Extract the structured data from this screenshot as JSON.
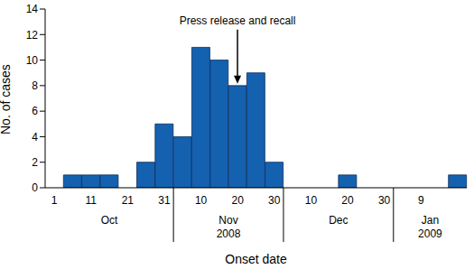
{
  "chart_data": {
    "type": "bar",
    "categories": [
      "1",
      null,
      "11",
      null,
      "21",
      null,
      "31",
      null,
      "10",
      null,
      "20",
      null,
      "30",
      null,
      "10",
      null,
      "20",
      null,
      "30",
      null,
      "9",
      null,
      null
    ],
    "values": [
      0,
      1,
      1,
      1,
      0,
      2,
      5,
      4,
      11,
      10,
      8,
      9,
      2,
      0,
      0,
      0,
      1,
      0,
      0,
      0,
      0,
      0,
      1
    ],
    "color": "#1461b0",
    "ylim": [
      0,
      14
    ],
    "yticks": [
      0,
      2,
      4,
      6,
      8,
      10,
      12,
      14
    ],
    "xlabel": "Onset date",
    "ylabel": "No. of cases",
    "x_groups": [
      {
        "label": "Oct",
        "from": 0,
        "to": 6
      },
      {
        "label": "Nov",
        "sublabel": "2008",
        "from": 7,
        "to": 12
      },
      {
        "label": "Dec",
        "from": 13,
        "to": 18
      },
      {
        "label": "Jan",
        "sublabel": "2009",
        "from": 19,
        "to": 22
      }
    ],
    "annotations": [
      {
        "text": "Press release and recall",
        "x": 10
      }
    ]
  }
}
